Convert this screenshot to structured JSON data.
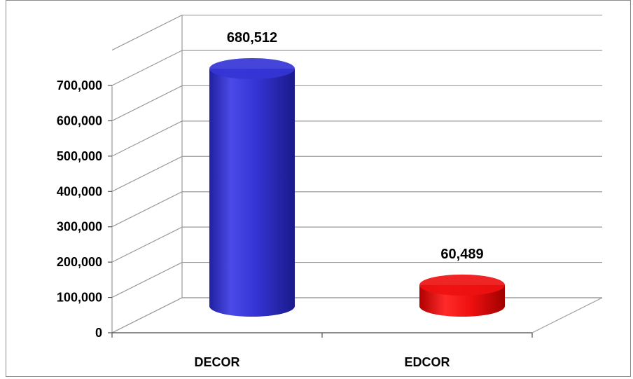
{
  "chart_data": {
    "type": "bar",
    "style": "3d-cylinder",
    "categories": [
      "DECOR",
      "EDCOR"
    ],
    "values": [
      680512,
      60489
    ],
    "value_labels": [
      "680,512",
      "60,489"
    ],
    "colors": [
      "#3535d6",
      "#ee1111"
    ],
    "ylim": [
      0,
      700000
    ],
    "ytick_values": [
      0,
      100000,
      200000,
      300000,
      400000,
      500000,
      600000,
      700000
    ],
    "ytick_labels": [
      "0",
      "100,000",
      "200,000",
      "300,000",
      "400,000",
      "500,000",
      "600,000",
      "700,000"
    ],
    "grid": true,
    "legend": "none"
  }
}
